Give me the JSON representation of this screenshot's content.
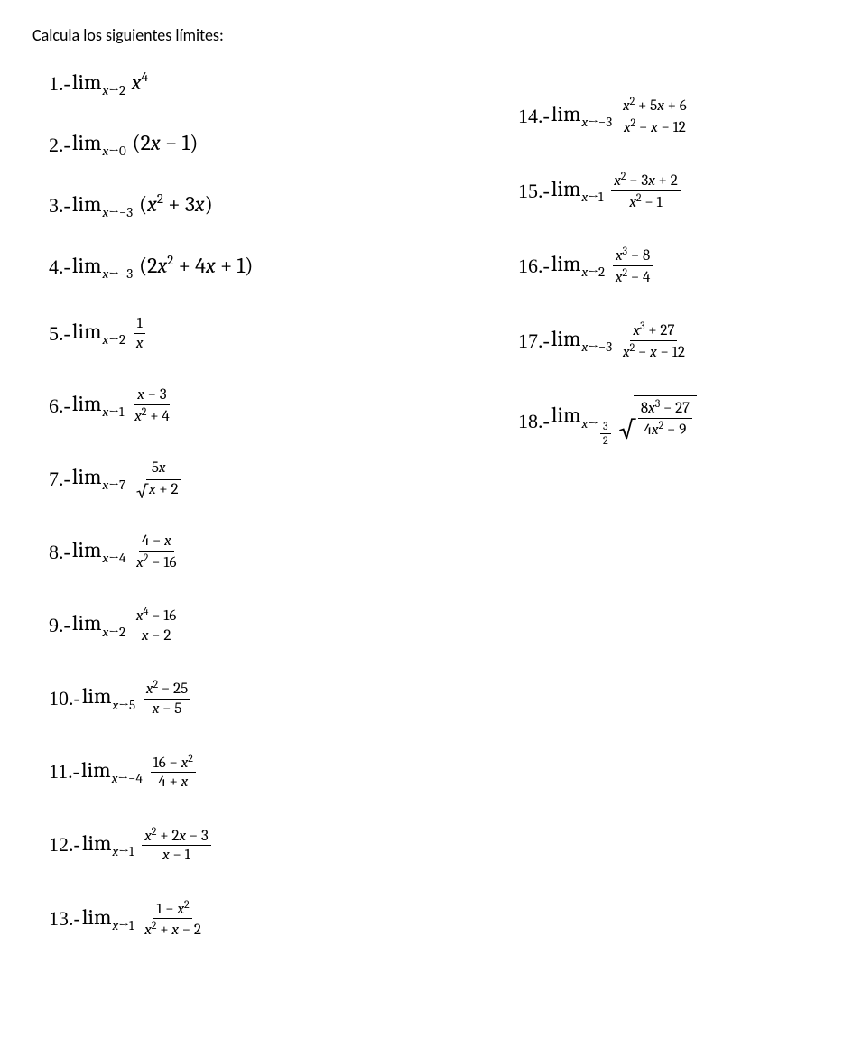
{
  "title": "Calcula los siguientes límites:",
  "lim_word": "lim",
  "arrow": "→",
  "left": [
    {
      "n": "1.-",
      "to": "2",
      "body_html": "<span class='it'>x</span><span class='sup'>4</span>"
    },
    {
      "n": "2.-",
      "to": "0",
      "body_html": "(2<span class='it'>x</span> − 1)"
    },
    {
      "n": "3.-",
      "to": "−3",
      "body_html": "(<span class='it'>x</span><span class='sup'>2</span> + 3<span class='it'>x</span>)"
    },
    {
      "n": "4.-",
      "to": "−3",
      "body_html": "(2<span class='it'>x</span><span class='sup'>2</span> + 4<span class='it'>x</span> + 1)"
    },
    {
      "n": "5.-",
      "to": "2",
      "frac": {
        "num": "1",
        "den": "<span class='it'>x</span>"
      }
    },
    {
      "n": "6.-",
      "to": "1",
      "frac": {
        "num": "<span class='it'>x</span> − 3",
        "den": "<span class='it'>x</span><span class='ssup'>2</span> + 4"
      }
    },
    {
      "n": "7.-",
      "to": "7",
      "frac": {
        "num": "5<span class='it'>x</span>",
        "den_sqrt": "<span class='it'>x</span> + 2"
      }
    },
    {
      "n": "8.-",
      "to": "4",
      "frac": {
        "num": "4 − <span class='it'>x</span>",
        "den": "<span class='it'>x</span><span class='ssup'>2</span> − 16"
      }
    },
    {
      "n": "9.-",
      "to": "2",
      "frac": {
        "num": "<span class='it'>x</span><span class='ssup'>4</span> − 16",
        "den": "<span class='it'>x</span> − 2"
      }
    },
    {
      "n": "10.-",
      "to": "5",
      "frac": {
        "num": "<span class='it'>x</span><span class='ssup'>2</span> − 25",
        "den": "<span class='it'>x</span> − 5"
      }
    },
    {
      "n": "11.-",
      "to": "−4",
      "frac": {
        "num": "16 − <span class='it'>x</span><span class='ssup'>2</span>",
        "den": "4 + <span class='it'>x</span>"
      }
    },
    {
      "n": "12.-",
      "to": "1",
      "frac": {
        "num": "<span class='it'>x</span><span class='ssup'>2</span> + 2<span class='it'>x</span> − 3",
        "den": "<span class='it'>x</span> − 1"
      }
    },
    {
      "n": "13.-",
      "to": "1",
      "frac": {
        "num": "1 − <span class='it'>x</span><span class='ssup'>2</span>",
        "den": "<span class='it'>x</span><span class='ssup'>2</span> + <span class='it'>x</span> − 2"
      }
    }
  ],
  "right": [
    {
      "n": "14.-",
      "to": "−3",
      "frac": {
        "num": "<span class='it'>x</span><span class='ssup'>2</span> + 5<span class='it'>x</span> + 6",
        "den": "<span class='it'>x</span><span class='ssup'>2</span> − <span class='it'>x</span> − 12"
      }
    },
    {
      "n": "15.-",
      "to": "1",
      "frac": {
        "num": "<span class='it'>x</span><span class='ssup'>2</span> − 3<span class='it'>x</span> + 2",
        "den": "<span class='it'>x</span><span class='ssup'>2</span> − 1"
      }
    },
    {
      "n": "16.-",
      "to": "2",
      "frac": {
        "num": "<span class='it'>x</span><span class='ssup'>3</span> − 8",
        "den": "<span class='it'>x</span><span class='ssup'>2</span> − 4"
      }
    },
    {
      "n": "17.-",
      "to": "−3",
      "frac": {
        "num": "<span class='it'>x</span><span class='ssup'>3</span> + 27",
        "den": "<span class='it'>x</span><span class='ssup'>2</span> − <span class='it'>x</span> − 12"
      }
    },
    {
      "n": "18.-",
      "to_html": "<span class='fr' style='vertical-align:-2px;'><span class='fn' style='font-size:12px;'>3</span><span class='fd' style='font-size:12px;'>2</span></span>",
      "sqrt_frac": {
        "num": "8<span class='it'>x</span><span class='ssup'>3</span> − 27",
        "den": "4<span class='it'>x</span><span class='ssup'>2</span> − 9"
      }
    }
  ]
}
